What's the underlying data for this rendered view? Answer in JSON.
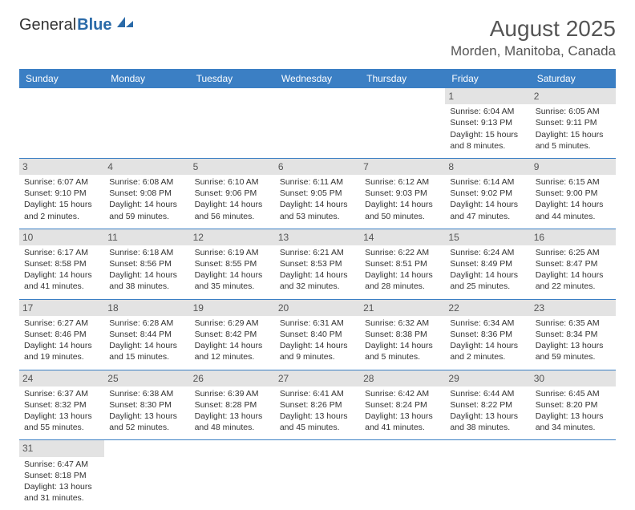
{
  "logo": {
    "general": "General",
    "blue": "Blue"
  },
  "title": "August 2025",
  "location": "Morden, Manitoba, Canada",
  "colors": {
    "header_bg": "#3b7fc4",
    "header_text": "#ffffff",
    "daynum_bg": "#e3e3e3",
    "daynum_text": "#555555",
    "body_text": "#333333",
    "divider": "#3b7fc4",
    "logo_blue": "#2a6aa8",
    "title_text": "#555555",
    "background": "#ffffff"
  },
  "typography": {
    "title_fontsize": 28,
    "location_fontsize": 17,
    "dayhdr_fontsize": 12,
    "daynum_fontsize": 12,
    "cell_fontsize": 10.5,
    "font_family": "Arial"
  },
  "day_headers": [
    "Sunday",
    "Monday",
    "Tuesday",
    "Wednesday",
    "Thursday",
    "Friday",
    "Saturday"
  ],
  "weeks": [
    [
      {
        "blank": true
      },
      {
        "blank": true
      },
      {
        "blank": true
      },
      {
        "blank": true
      },
      {
        "blank": true
      },
      {
        "day": "1",
        "sunrise": "Sunrise: 6:04 AM",
        "sunset": "Sunset: 9:13 PM",
        "daylight": "Daylight: 15 hours and 8 minutes."
      },
      {
        "day": "2",
        "sunrise": "Sunrise: 6:05 AM",
        "sunset": "Sunset: 9:11 PM",
        "daylight": "Daylight: 15 hours and 5 minutes."
      }
    ],
    [
      {
        "day": "3",
        "sunrise": "Sunrise: 6:07 AM",
        "sunset": "Sunset: 9:10 PM",
        "daylight": "Daylight: 15 hours and 2 minutes."
      },
      {
        "day": "4",
        "sunrise": "Sunrise: 6:08 AM",
        "sunset": "Sunset: 9:08 PM",
        "daylight": "Daylight: 14 hours and 59 minutes."
      },
      {
        "day": "5",
        "sunrise": "Sunrise: 6:10 AM",
        "sunset": "Sunset: 9:06 PM",
        "daylight": "Daylight: 14 hours and 56 minutes."
      },
      {
        "day": "6",
        "sunrise": "Sunrise: 6:11 AM",
        "sunset": "Sunset: 9:05 PM",
        "daylight": "Daylight: 14 hours and 53 minutes."
      },
      {
        "day": "7",
        "sunrise": "Sunrise: 6:12 AM",
        "sunset": "Sunset: 9:03 PM",
        "daylight": "Daylight: 14 hours and 50 minutes."
      },
      {
        "day": "8",
        "sunrise": "Sunrise: 6:14 AM",
        "sunset": "Sunset: 9:02 PM",
        "daylight": "Daylight: 14 hours and 47 minutes."
      },
      {
        "day": "9",
        "sunrise": "Sunrise: 6:15 AM",
        "sunset": "Sunset: 9:00 PM",
        "daylight": "Daylight: 14 hours and 44 minutes."
      }
    ],
    [
      {
        "day": "10",
        "sunrise": "Sunrise: 6:17 AM",
        "sunset": "Sunset: 8:58 PM",
        "daylight": "Daylight: 14 hours and 41 minutes."
      },
      {
        "day": "11",
        "sunrise": "Sunrise: 6:18 AM",
        "sunset": "Sunset: 8:56 PM",
        "daylight": "Daylight: 14 hours and 38 minutes."
      },
      {
        "day": "12",
        "sunrise": "Sunrise: 6:19 AM",
        "sunset": "Sunset: 8:55 PM",
        "daylight": "Daylight: 14 hours and 35 minutes."
      },
      {
        "day": "13",
        "sunrise": "Sunrise: 6:21 AM",
        "sunset": "Sunset: 8:53 PM",
        "daylight": "Daylight: 14 hours and 32 minutes."
      },
      {
        "day": "14",
        "sunrise": "Sunrise: 6:22 AM",
        "sunset": "Sunset: 8:51 PM",
        "daylight": "Daylight: 14 hours and 28 minutes."
      },
      {
        "day": "15",
        "sunrise": "Sunrise: 6:24 AM",
        "sunset": "Sunset: 8:49 PM",
        "daylight": "Daylight: 14 hours and 25 minutes."
      },
      {
        "day": "16",
        "sunrise": "Sunrise: 6:25 AM",
        "sunset": "Sunset: 8:47 PM",
        "daylight": "Daylight: 14 hours and 22 minutes."
      }
    ],
    [
      {
        "day": "17",
        "sunrise": "Sunrise: 6:27 AM",
        "sunset": "Sunset: 8:46 PM",
        "daylight": "Daylight: 14 hours and 19 minutes."
      },
      {
        "day": "18",
        "sunrise": "Sunrise: 6:28 AM",
        "sunset": "Sunset: 8:44 PM",
        "daylight": "Daylight: 14 hours and 15 minutes."
      },
      {
        "day": "19",
        "sunrise": "Sunrise: 6:29 AM",
        "sunset": "Sunset: 8:42 PM",
        "daylight": "Daylight: 14 hours and 12 minutes."
      },
      {
        "day": "20",
        "sunrise": "Sunrise: 6:31 AM",
        "sunset": "Sunset: 8:40 PM",
        "daylight": "Daylight: 14 hours and 9 minutes."
      },
      {
        "day": "21",
        "sunrise": "Sunrise: 6:32 AM",
        "sunset": "Sunset: 8:38 PM",
        "daylight": "Daylight: 14 hours and 5 minutes."
      },
      {
        "day": "22",
        "sunrise": "Sunrise: 6:34 AM",
        "sunset": "Sunset: 8:36 PM",
        "daylight": "Daylight: 14 hours and 2 minutes."
      },
      {
        "day": "23",
        "sunrise": "Sunrise: 6:35 AM",
        "sunset": "Sunset: 8:34 PM",
        "daylight": "Daylight: 13 hours and 59 minutes."
      }
    ],
    [
      {
        "day": "24",
        "sunrise": "Sunrise: 6:37 AM",
        "sunset": "Sunset: 8:32 PM",
        "daylight": "Daylight: 13 hours and 55 minutes."
      },
      {
        "day": "25",
        "sunrise": "Sunrise: 6:38 AM",
        "sunset": "Sunset: 8:30 PM",
        "daylight": "Daylight: 13 hours and 52 minutes."
      },
      {
        "day": "26",
        "sunrise": "Sunrise: 6:39 AM",
        "sunset": "Sunset: 8:28 PM",
        "daylight": "Daylight: 13 hours and 48 minutes."
      },
      {
        "day": "27",
        "sunrise": "Sunrise: 6:41 AM",
        "sunset": "Sunset: 8:26 PM",
        "daylight": "Daylight: 13 hours and 45 minutes."
      },
      {
        "day": "28",
        "sunrise": "Sunrise: 6:42 AM",
        "sunset": "Sunset: 8:24 PM",
        "daylight": "Daylight: 13 hours and 41 minutes."
      },
      {
        "day": "29",
        "sunrise": "Sunrise: 6:44 AM",
        "sunset": "Sunset: 8:22 PM",
        "daylight": "Daylight: 13 hours and 38 minutes."
      },
      {
        "day": "30",
        "sunrise": "Sunrise: 6:45 AM",
        "sunset": "Sunset: 8:20 PM",
        "daylight": "Daylight: 13 hours and 34 minutes."
      }
    ],
    [
      {
        "day": "31",
        "sunrise": "Sunrise: 6:47 AM",
        "sunset": "Sunset: 8:18 PM",
        "daylight": "Daylight: 13 hours and 31 minutes."
      },
      {
        "blank": true
      },
      {
        "blank": true
      },
      {
        "blank": true
      },
      {
        "blank": true
      },
      {
        "blank": true
      },
      {
        "blank": true
      }
    ]
  ]
}
